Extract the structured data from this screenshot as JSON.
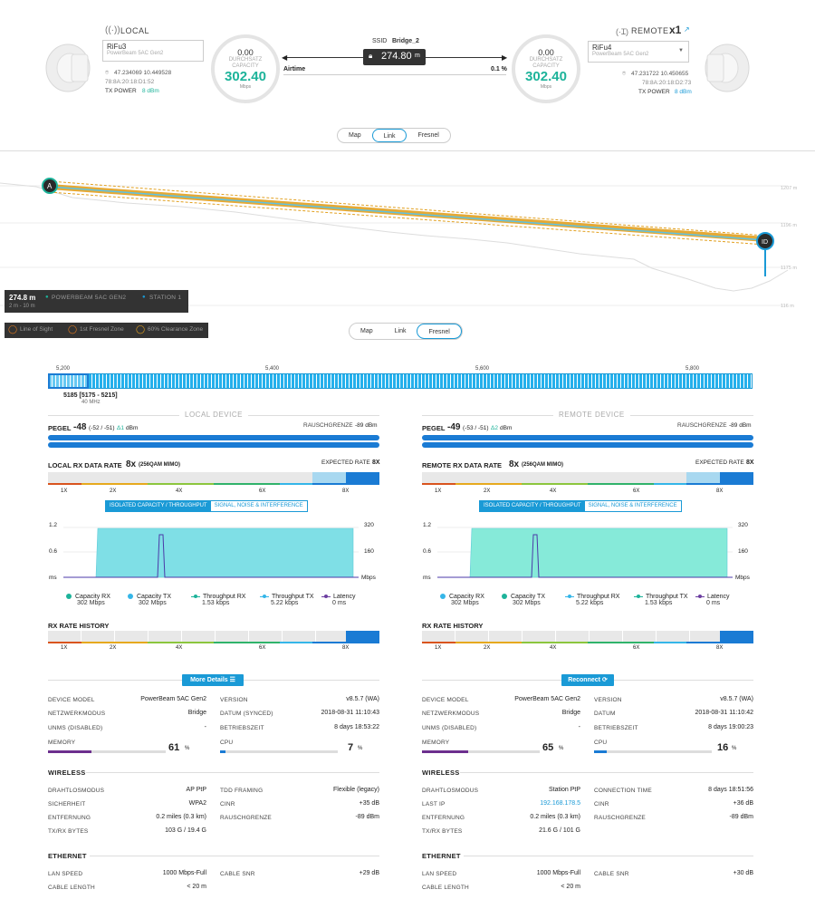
{
  "local": {
    "title": "LOCAL",
    "device_name": "RiFu3",
    "device_model": "PowerBeam 5AC Gen2",
    "coords": "47.234069  10.449528",
    "mac": "78:8A:20:18:D1:52",
    "tx_power_label": "TX POWER",
    "tx_power": "8 dBm",
    "gauge": {
      "top": "0.00",
      "label1": "DURCHSATZ",
      "label2": "CAPACITY",
      "value": "302.40",
      "unit": "Mbps"
    }
  },
  "remote": {
    "title": "REMOTE",
    "count": "x1",
    "device_name": "RiFu4",
    "device_model": "PowerBeam 5AC Gen2",
    "coords": "47.231722  10.450655",
    "mac": "78:8A:20:18:D2:73",
    "tx_power_label": "TX POWER",
    "tx_power": "8 dBm",
    "gauge": {
      "top": "0.00",
      "label1": "DURCHSATZ",
      "label2": "CAPACITY",
      "value": "302.40",
      "unit": "Mbps"
    }
  },
  "link": {
    "ssid_label": "SSID",
    "ssid": "Bridge_2",
    "distance": "274.80",
    "distance_unit": "m",
    "airtime_label": "Airtime",
    "airtime": "0.1 %"
  },
  "view_tabs": {
    "map": "Map",
    "link": "Link",
    "fresnel": "Fresnel"
  },
  "profile": {
    "elevations": [
      "1207 m",
      "1196 m",
      "1175 m",
      "116 m"
    ],
    "info_distance": "274.8 m",
    "info_device": "POWERBEAM 5AC GEN2",
    "info_station": "STATION 1",
    "info_range": "2 m - 10 m",
    "legend": [
      "Line of Sight",
      "1st Fresnel Zone",
      "60% Clearance Zone"
    ]
  },
  "freq": {
    "ticks": [
      "5,200",
      "5,400",
      "5,600",
      "5,800"
    ],
    "selected": "5185 [5175 - 5215]",
    "width": "40 MHz"
  },
  "panels": [
    {
      "header": "LOCAL DEVICE",
      "pegel_label": "PEGEL",
      "pegel": "-48",
      "pegel_detail": "(-52 / -51)",
      "delta": "Δ1",
      "pegel_unit": "dBm",
      "noise_label": "RAUSCHGRENZE",
      "noise": "-89 dBm",
      "rate_label": "LOCAL RX DATA RATE",
      "rate": "8x",
      "rate_mod": "(256QAM MIMO)",
      "expected_label": "EXPECTED RATE",
      "expected": "8X",
      "rate_ticks": [
        "1X",
        "2X",
        "4X",
        "6X",
        "8X"
      ],
      "toggle_on": "ISOLATED CAPACITY / THROUGHPUT",
      "toggle_off": "SIGNAL, NOISE & INTERFERENCE",
      "yl": [
        "1.2",
        "0.6",
        "ms"
      ],
      "yr": [
        "320",
        "160",
        "Mbps"
      ],
      "legend": [
        {
          "name": "Capacity RX",
          "value": "302 Mbps",
          "color": "#1db39a"
        },
        {
          "name": "Capacity TX",
          "value": "302 Mbps",
          "color": "#35b6e8"
        },
        {
          "name": "Throughput RX",
          "value": "1.53 kbps",
          "color": "#1db39a"
        },
        {
          "name": "Throughput TX",
          "value": "5.22 kbps",
          "color": "#35b6e8"
        },
        {
          "name": "Latency",
          "value": "0 ms",
          "color": "#6c3fa1"
        }
      ],
      "history_label": "RX RATE HISTORY",
      "button": "More Details",
      "details": {
        "device_model_label": "DEVICE MODEL",
        "device_model": "PowerBeam 5AC Gen2",
        "version_label": "VERSION",
        "version": "v8.5.7 (WA)",
        "mode_label": "NETZWERKMODUS",
        "mode": "Bridge",
        "date_label": "DATUM (SYNCED)",
        "date": "2018-08-31 11:10:43",
        "unms_label": "UNMS (DISABLED)",
        "unms": "-",
        "uptime_label": "BETRIEBSZEIT",
        "uptime": "8 days 18:53:22",
        "memory_label": "MEMORY",
        "memory": "61",
        "memory_unit": "%",
        "cpu_label": "CPU",
        "cpu": "7",
        "cpu_unit": "%"
      },
      "wireless": {
        "title": "WIRELESS",
        "rows": [
          {
            "l": "DRAHTLOSMODUS",
            "v": "AP PtP",
            "l2": "TDD FRAMING",
            "v2": "Flexible (legacy)"
          },
          {
            "l": "SICHERHEIT",
            "v": "WPA2",
            "l2": "CINR",
            "v2": "+35 dB"
          },
          {
            "l": "ENTFERNUNG",
            "v": "0.2 miles (0.3 km)",
            "l2": "RAUSCHGRENZE",
            "v2": "-89 dBm"
          },
          {
            "l": "TX/RX BYTES",
            "v": "103 G / 19.4 G",
            "l2": "",
            "v2": ""
          }
        ]
      },
      "ethernet": {
        "title": "ETHERNET",
        "lan_label": "LAN SPEED",
        "lan": "1000 Mbps-Full",
        "snr_label": "CABLE SNR",
        "snr": "+29 dB",
        "len_label": "CABLE LENGTH",
        "len": "< 20 m"
      }
    },
    {
      "header": "REMOTE DEVICE",
      "pegel_label": "PEGEL",
      "pegel": "-49",
      "pegel_detail": "(-53 / -51)",
      "delta": "Δ2",
      "pegel_unit": "dBm",
      "noise_label": "RAUSCHGRENZE",
      "noise": "-89 dBm",
      "rate_label": "REMOTE RX DATA RATE",
      "rate": "8x",
      "rate_mod": "(256QAM MIMO)",
      "expected_label": "EXPECTED RATE",
      "expected": "8X",
      "rate_ticks": [
        "1X",
        "2X",
        "4X",
        "6X",
        "8X"
      ],
      "toggle_on": "ISOLATED CAPACITY / THROUGHPUT",
      "toggle_off": "SIGNAL, NOISE & INTERFERENCE",
      "yl": [
        "1.2",
        "0.6",
        "ms"
      ],
      "yr": [
        "320",
        "160",
        "Mbps"
      ],
      "legend": [
        {
          "name": "Capacity RX",
          "value": "302 Mbps",
          "color": "#35b6e8"
        },
        {
          "name": "Capacity TX",
          "value": "302 Mbps",
          "color": "#1db39a"
        },
        {
          "name": "Throughput RX",
          "value": "5.22 kbps",
          "color": "#35b6e8"
        },
        {
          "name": "Throughput TX",
          "value": "1.53 kbps",
          "color": "#1db39a"
        },
        {
          "name": "Latency",
          "value": "0 ms",
          "color": "#6c3fa1"
        }
      ],
      "history_label": "RX RATE HISTORY",
      "button": "Reconnect",
      "details": {
        "device_model_label": "DEVICE MODEL",
        "device_model": "PowerBeam 5AC Gen2",
        "version_label": "VERSION",
        "version": "v8.5.7 (WA)",
        "mode_label": "NETZWERKMODUS",
        "mode": "Bridge",
        "date_label": "DATUM",
        "date": "2018-08-31 11:10:42",
        "unms_label": "UNMS (DISABLED)",
        "unms": "-",
        "uptime_label": "BETRIEBSZEIT",
        "uptime": "8 days 19:00:23",
        "memory_label": "MEMORY",
        "memory": "65",
        "memory_unit": "%",
        "cpu_label": "CPU",
        "cpu": "16",
        "cpu_unit": "%"
      },
      "wireless": {
        "title": "WIRELESS",
        "rows": [
          {
            "l": "DRAHTLOSMODUS",
            "v": "Station PtP",
            "l2": "CONNECTION TIME",
            "v2": "8 days 18:51:56"
          },
          {
            "l": "LAST IP",
            "v": "192.168.178.5",
            "l2": "CINR",
            "v2": "+36 dB"
          },
          {
            "l": "ENTFERNUNG",
            "v": "0.2 miles (0.3 km)",
            "l2": "RAUSCHGRENZE",
            "v2": "-89 dBm"
          },
          {
            "l": "TX/RX BYTES",
            "v": "21.6 G / 101 G",
            "l2": "",
            "v2": ""
          }
        ]
      },
      "ethernet": {
        "title": "ETHERNET",
        "lan_label": "LAN SPEED",
        "lan": "1000 Mbps-Full",
        "snr_label": "CABLE SNR",
        "snr": "+30 dB",
        "len_label": "CABLE LENGTH",
        "len": "< 20 m"
      }
    }
  ]
}
